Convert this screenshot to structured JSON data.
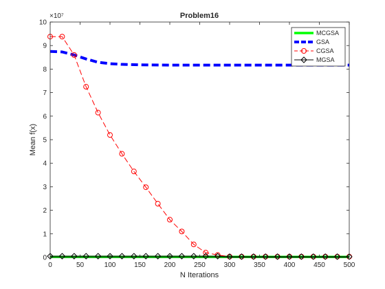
{
  "chart_data": {
    "type": "line",
    "title": "Problem16",
    "xlabel": "N Iterations",
    "ylabel": "Mean f(x)",
    "xlim": [
      0,
      500
    ],
    "ylim": [
      0,
      100000000
    ],
    "y_exponent_label": "×10⁷",
    "xticks": [
      0,
      50,
      100,
      150,
      200,
      250,
      300,
      350,
      400,
      450,
      500
    ],
    "yticks": [
      0,
      1,
      2,
      3,
      4,
      5,
      6,
      7,
      8,
      9,
      10
    ],
    "grid": false,
    "legend_position": "top-right",
    "series": [
      {
        "name": "MCGSA",
        "color": "#00ff00",
        "line": "solid",
        "marker": "none",
        "x": [
          0,
          20,
          40,
          60,
          80,
          100,
          150,
          200,
          250,
          300,
          350,
          400,
          450,
          500
        ],
        "y": [
          200000,
          200000,
          200000,
          200000,
          200000,
          200000,
          200000,
          200000,
          200000,
          200000,
          200000,
          200000,
          200000,
          200000
        ]
      },
      {
        "name": "GSA",
        "color": "#0000ff",
        "line": "dashed",
        "marker": "none",
        "x": [
          0,
          20,
          40,
          60,
          80,
          100,
          120,
          150,
          200,
          250,
          300,
          350,
          400,
          450,
          500
        ],
        "y": [
          87500000,
          87300000,
          86000000,
          84300000,
          82900000,
          82300000,
          82000000,
          81800000,
          81700000,
          81700000,
          81700000,
          81700000,
          81700000,
          81700000,
          81700000
        ]
      },
      {
        "name": "CGSA",
        "color": "#ff0000",
        "line": "dashed",
        "marker": "circle",
        "x": [
          0,
          20,
          40,
          60,
          80,
          100,
          120,
          140,
          160,
          180,
          200,
          220,
          240,
          260,
          280,
          300,
          320,
          340,
          360,
          380,
          400,
          420,
          440,
          460,
          480,
          500
        ],
        "y": [
          93800000,
          93800000,
          86000000,
          72500000,
          61500000,
          52000000,
          44000000,
          36500000,
          29800000,
          22800000,
          16000000,
          11000000,
          5500000,
          2000000,
          1000000,
          300000,
          300000,
          300000,
          300000,
          300000,
          300000,
          300000,
          300000,
          300000,
          300000,
          300000
        ]
      },
      {
        "name": "MGSA",
        "color": "#000000",
        "line": "solid",
        "marker": "diamond",
        "x": [
          0,
          20,
          40,
          60,
          80,
          100,
          120,
          140,
          160,
          180,
          200,
          220,
          240,
          260,
          280,
          300,
          320,
          340,
          360,
          380,
          400,
          420,
          440,
          460,
          480,
          500
        ],
        "y": [
          500000,
          500000,
          500000,
          500000,
          500000,
          500000,
          500000,
          500000,
          500000,
          500000,
          500000,
          500000,
          500000,
          500000,
          500000,
          300000,
          300000,
          300000,
          300000,
          300000,
          300000,
          300000,
          300000,
          300000,
          300000,
          300000
        ]
      }
    ]
  }
}
